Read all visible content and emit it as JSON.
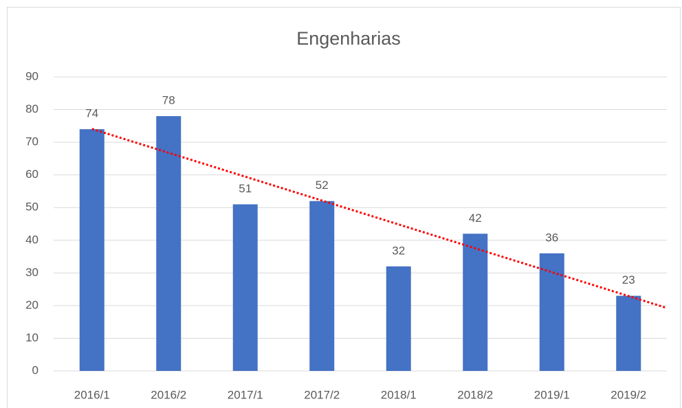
{
  "chart_data": {
    "type": "bar",
    "title": "Engenharias",
    "categories": [
      "2016/1",
      "2016/2",
      "2017/1",
      "2017/2",
      "2018/1",
      "2018/2",
      "2019/1",
      "2019/2"
    ],
    "values": [
      74,
      78,
      51,
      52,
      32,
      42,
      36,
      23
    ],
    "color": "#4472c4",
    "ylim": [
      0,
      90
    ],
    "yticks": [
      0,
      10,
      20,
      30,
      40,
      50,
      60,
      70,
      80,
      90
    ],
    "grid": true,
    "data_labels": true,
    "trendline": "linear",
    "trendline_color": "#ff0000"
  }
}
